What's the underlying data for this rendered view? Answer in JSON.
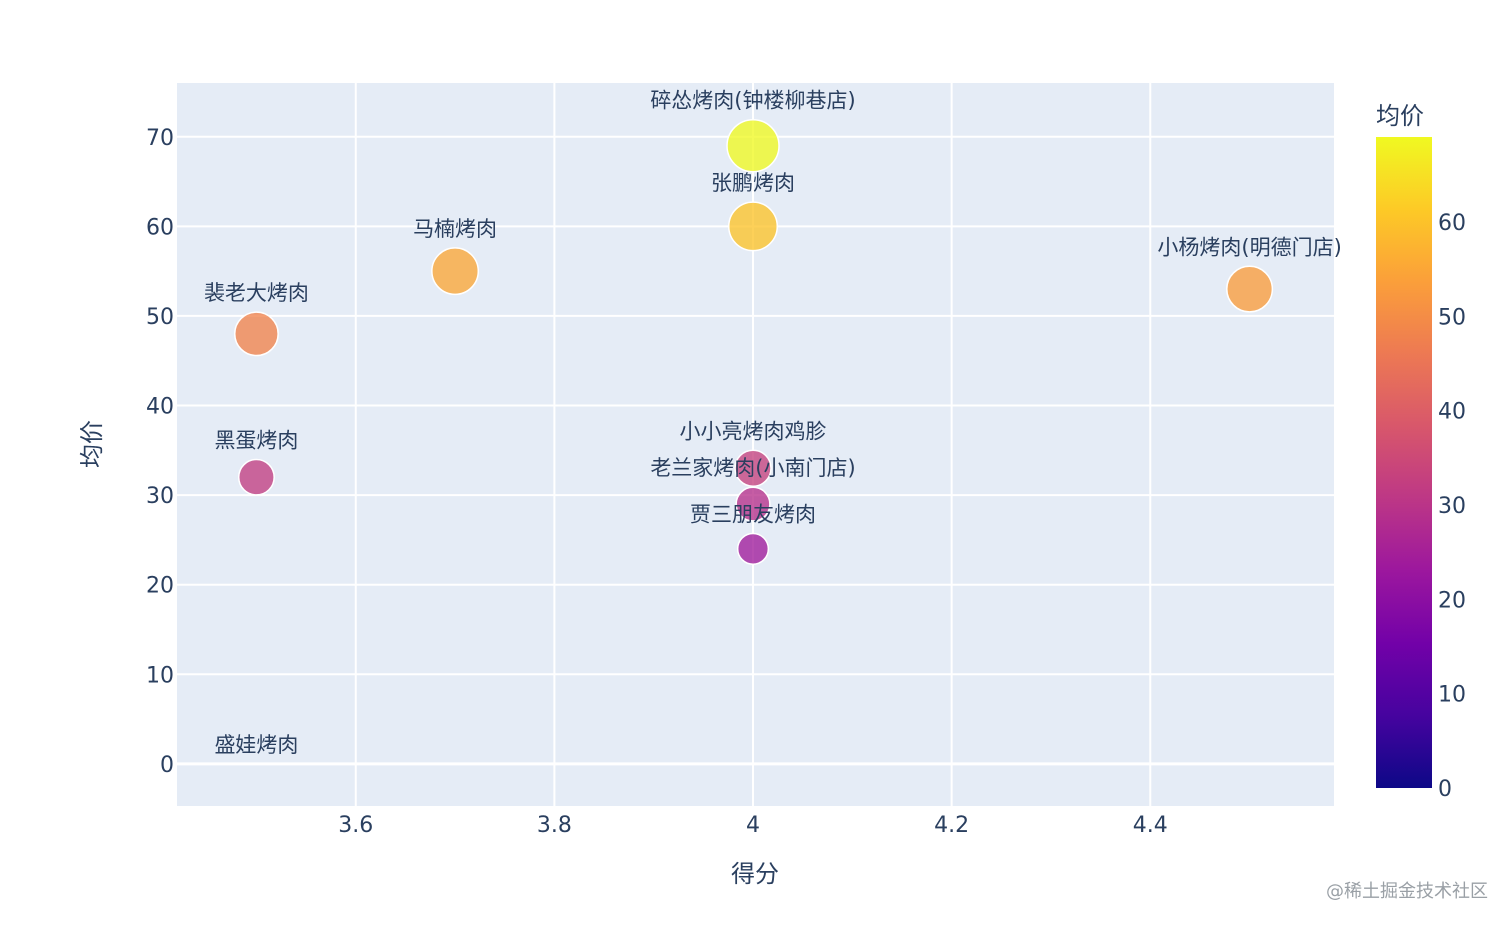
{
  "chart_data": {
    "type": "scatter",
    "xlabel": "得分",
    "ylabel": "均价",
    "xlim": [
      3.42,
      4.585
    ],
    "ylim": [
      -4.7,
      76
    ],
    "xticks": [
      3.6,
      3.8,
      4,
      4.2,
      4.4
    ],
    "xtick_labels": [
      "3.6",
      "3.8",
      "4",
      "4.2",
      "4.4"
    ],
    "yticks": [
      0,
      10,
      20,
      30,
      40,
      50,
      60,
      70
    ],
    "ytick_labels": [
      "0",
      "10",
      "20",
      "30",
      "40",
      "50",
      "60",
      "70"
    ],
    "grid": true,
    "colorbar": {
      "title": "均价",
      "range": [
        0,
        69
      ],
      "ticks": [
        0,
        10,
        20,
        30,
        40,
        50,
        60
      ],
      "tick_labels": [
        "0",
        "10",
        "20",
        "30",
        "40",
        "50",
        "60"
      ],
      "colorscale": [
        "#0d0887",
        "#46039f",
        "#7201a8",
        "#9c179e",
        "#bd3786",
        "#d8576b",
        "#ed7953",
        "#fb9f3a",
        "#fdca26",
        "#f0f921"
      ]
    },
    "points": [
      {
        "label": "碎怂烤肉(钟楼柳巷店)",
        "x": 4.0,
        "y": 69
      },
      {
        "label": "张鹏烤肉",
        "x": 4.0,
        "y": 60
      },
      {
        "label": "马楠烤肉",
        "x": 3.7,
        "y": 55
      },
      {
        "label": "小杨烤肉(明德门店)",
        "x": 4.5,
        "y": 53
      },
      {
        "label": "裴老大烤肉",
        "x": 3.5,
        "y": 48
      },
      {
        "label": "小小亮烤肉鸡胗",
        "x": 4.0,
        "y": 33
      },
      {
        "label": "黑蛋烤肉",
        "x": 3.5,
        "y": 32
      },
      {
        "label": "老兰家烤肉(小南门店)",
        "x": 4.0,
        "y": 29
      },
      {
        "label": "贾三朋友烤肉",
        "x": 4.0,
        "y": 24
      },
      {
        "label": "盛娃烤肉",
        "x": 3.5,
        "y": 0
      }
    ]
  },
  "watermark": "@稀土掘金技术社区"
}
